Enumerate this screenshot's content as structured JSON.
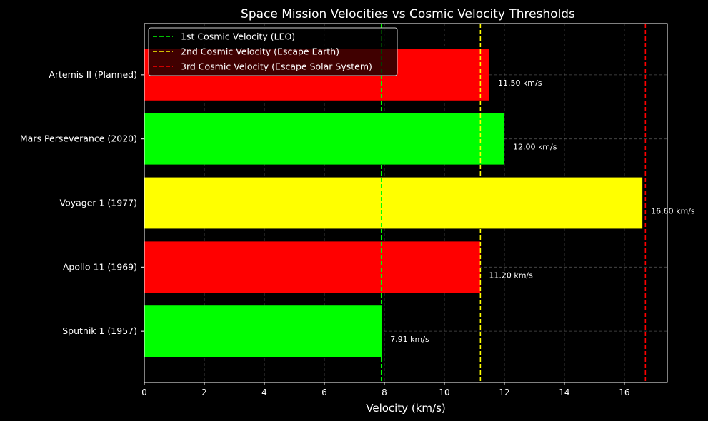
{
  "chart_data": {
    "type": "bar",
    "orientation": "horizontal",
    "title": "Space Mission Velocities vs Cosmic Velocity Thresholds",
    "xlabel": "Velocity (km/s)",
    "ylabel": "",
    "xlim": [
      0,
      17.43
    ],
    "xticks": [
      0,
      2,
      4,
      6,
      8,
      10,
      12,
      14,
      16
    ],
    "grid": true,
    "legend_position": "top-left",
    "categories": [
      "Sputnik 1 (1957)",
      "Apollo 11 (1969)",
      "Voyager 1 (1977)",
      "Mars Perseverance (2020)",
      "Artemis II (Planned)"
    ],
    "values": [
      7.91,
      11.2,
      16.6,
      12.0,
      11.5
    ],
    "value_labels": [
      "7.91 km/s",
      "11.20 km/s",
      "16.60 km/s",
      "12.00 km/s",
      "11.50 km/s"
    ],
    "bar_colors": [
      "#00ff00",
      "#ff0000",
      "#ffff00",
      "#00ff00",
      "#ff0000"
    ],
    "reference_lines": [
      {
        "name": "1st Cosmic Velocity (LEO)",
        "value": 7.9,
        "color": "#00ff00"
      },
      {
        "name": "2nd Cosmic Velocity (Escape Earth)",
        "value": 11.2,
        "color": "#ffff00"
      },
      {
        "name": "3rd Cosmic Velocity (Escape Solar System)",
        "value": 16.7,
        "color": "#ff0000"
      }
    ]
  }
}
